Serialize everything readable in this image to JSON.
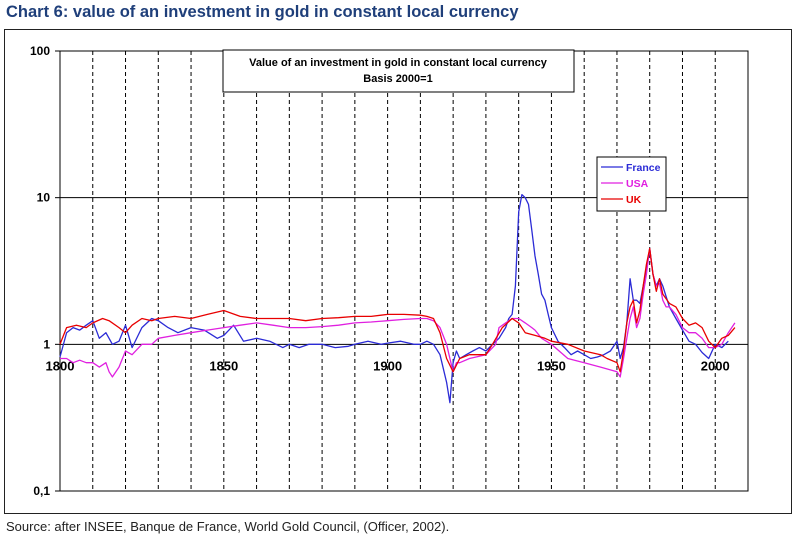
{
  "heading": "Chart 6: value of an investment in gold in constant local currency",
  "source": "Source: after INSEE, Banque de France, World Gold Council, (Officer, 2002).",
  "chart_data": {
    "type": "line",
    "title": "Value of an investment in gold in constant local currency",
    "subtitle": "Basis 2000=1",
    "xlabel": "",
    "ylabel": "",
    "yscale": "log",
    "ylim": [
      0.1,
      100
    ],
    "xlim": [
      1800,
      2010
    ],
    "y_ticks": [
      100,
      10,
      1,
      0.1
    ],
    "y_tick_labels": [
      "100",
      "10",
      "1",
      "0,1"
    ],
    "x_ticks": [
      1800,
      1850,
      1900,
      1950,
      2000
    ],
    "x_tick_labels": [
      "1800",
      "1850",
      "1900",
      "1950",
      "2000"
    ],
    "vertical_gridlines_every_years": 10,
    "legend_position": "right",
    "series": [
      {
        "name": "France",
        "color": "#2b2bd6",
        "x": [
          1800,
          1802,
          1804,
          1806,
          1808,
          1810,
          1812,
          1814,
          1816,
          1818,
          1820,
          1822,
          1825,
          1828,
          1830,
          1833,
          1836,
          1840,
          1844,
          1848,
          1850,
          1853,
          1856,
          1860,
          1864,
          1868,
          1870,
          1873,
          1876,
          1880,
          1884,
          1888,
          1890,
          1894,
          1898,
          1900,
          1904,
          1908,
          1910,
          1912,
          1914,
          1916,
          1918,
          1919,
          1920,
          1921,
          1922,
          1924,
          1926,
          1928,
          1930,
          1932,
          1934,
          1936,
          1937,
          1938,
          1939,
          1940,
          1941,
          1942,
          1943,
          1944,
          1945,
          1946,
          1947,
          1948,
          1949,
          1950,
          1952,
          1954,
          1956,
          1958,
          1960,
          1962,
          1964,
          1966,
          1968,
          1970,
          1971,
          1972,
          1973,
          1974,
          1975,
          1976,
          1977,
          1978,
          1979,
          1980,
          1981,
          1982,
          1983,
          1984,
          1986,
          1988,
          1990,
          1992,
          1994,
          1996,
          1998,
          2000,
          2002,
          2004
        ],
        "values": [
          0.82,
          1.2,
          1.3,
          1.25,
          1.35,
          1.45,
          1.1,
          1.2,
          1.0,
          1.05,
          1.35,
          0.95,
          1.3,
          1.5,
          1.45,
          1.3,
          1.2,
          1.3,
          1.25,
          1.1,
          1.15,
          1.35,
          1.05,
          1.1,
          1.05,
          0.95,
          1.0,
          0.95,
          1.0,
          1.0,
          0.95,
          0.97,
          1.0,
          1.05,
          1.0,
          1.02,
          1.05,
          1.0,
          1.0,
          1.05,
          1.0,
          0.85,
          0.55,
          0.4,
          0.75,
          0.9,
          0.8,
          0.85,
          0.9,
          0.95,
          0.9,
          1.0,
          1.1,
          1.3,
          1.5,
          1.6,
          2.5,
          8.0,
          10.5,
          10.0,
          9.0,
          6.0,
          4.0,
          3.0,
          2.2,
          2.0,
          1.6,
          1.3,
          1.05,
          0.95,
          0.85,
          0.9,
          0.85,
          0.8,
          0.82,
          0.85,
          0.9,
          1.05,
          0.8,
          0.95,
          1.4,
          2.8,
          2.0,
          2.0,
          1.9,
          2.5,
          3.2,
          4.5,
          3.0,
          2.5,
          2.8,
          2.5,
          1.8,
          1.5,
          1.25,
          1.05,
          1.0,
          0.88,
          0.8,
          1.0,
          0.95,
          1.05
        ]
      },
      {
        "name": "USA",
        "color": "#e020e0",
        "x": [
          1800,
          1802,
          1804,
          1806,
          1808,
          1810,
          1812,
          1814,
          1815,
          1816,
          1818,
          1820,
          1822,
          1825,
          1828,
          1830,
          1835,
          1840,
          1845,
          1850,
          1855,
          1860,
          1865,
          1870,
          1875,
          1880,
          1885,
          1890,
          1895,
          1900,
          1905,
          1910,
          1912,
          1914,
          1916,
          1918,
          1919,
          1920,
          1921,
          1922,
          1925,
          1930,
          1933,
          1934,
          1936,
          1938,
          1940,
          1942,
          1944,
          1945,
          1947,
          1950,
          1955,
          1960,
          1965,
          1970,
          1971,
          1972,
          1973,
          1974,
          1975,
          1976,
          1977,
          1978,
          1979,
          1980,
          1981,
          1982,
          1983,
          1984,
          1985,
          1986,
          1988,
          1990,
          1992,
          1994,
          1996,
          1998,
          2000,
          2002,
          2004,
          2006
        ],
        "values": [
          0.8,
          0.8,
          0.75,
          0.78,
          0.75,
          0.75,
          0.7,
          0.75,
          0.65,
          0.6,
          0.7,
          0.9,
          0.85,
          1.0,
          1.0,
          1.1,
          1.15,
          1.2,
          1.25,
          1.3,
          1.35,
          1.4,
          1.35,
          1.3,
          1.3,
          1.32,
          1.35,
          1.4,
          1.42,
          1.45,
          1.48,
          1.5,
          1.5,
          1.45,
          1.3,
          1.0,
          0.8,
          0.65,
          0.75,
          0.75,
          0.8,
          0.85,
          1.0,
          1.3,
          1.4,
          1.5,
          1.5,
          1.4,
          1.3,
          1.25,
          1.1,
          1.0,
          0.8,
          0.75,
          0.7,
          0.65,
          0.6,
          0.8,
          1.1,
          1.5,
          1.8,
          1.3,
          1.5,
          2.2,
          3.0,
          4.5,
          3.0,
          2.5,
          2.6,
          2.0,
          1.8,
          1.8,
          1.6,
          1.3,
          1.2,
          1.2,
          1.1,
          0.95,
          0.95,
          1.0,
          1.2,
          1.4
        ]
      },
      {
        "name": "UK",
        "color": "#e80000",
        "x": [
          1800,
          1802,
          1805,
          1808,
          1810,
          1813,
          1815,
          1818,
          1820,
          1822,
          1825,
          1828,
          1830,
          1835,
          1840,
          1845,
          1850,
          1855,
          1860,
          1865,
          1870,
          1875,
          1880,
          1885,
          1890,
          1895,
          1900,
          1905,
          1910,
          1912,
          1914,
          1916,
          1918,
          1920,
          1922,
          1925,
          1930,
          1932,
          1935,
          1938,
          1940,
          1942,
          1945,
          1948,
          1950,
          1955,
          1960,
          1965,
          1967,
          1970,
          1971,
          1972,
          1973,
          1974,
          1975,
          1976,
          1977,
          1978,
          1979,
          1980,
          1981,
          1982,
          1983,
          1984,
          1986,
          1988,
          1990,
          1992,
          1994,
          1996,
          1998,
          2000,
          2002,
          2004,
          2006
        ],
        "values": [
          1.0,
          1.3,
          1.35,
          1.3,
          1.4,
          1.5,
          1.45,
          1.3,
          1.2,
          1.35,
          1.5,
          1.45,
          1.5,
          1.55,
          1.5,
          1.6,
          1.7,
          1.55,
          1.5,
          1.5,
          1.5,
          1.45,
          1.5,
          1.52,
          1.55,
          1.55,
          1.6,
          1.6,
          1.58,
          1.55,
          1.5,
          1.2,
          0.8,
          0.65,
          0.8,
          0.85,
          0.85,
          1.0,
          1.3,
          1.5,
          1.4,
          1.2,
          1.15,
          1.1,
          1.05,
          1.0,
          0.9,
          0.85,
          0.8,
          0.75,
          0.65,
          0.9,
          1.4,
          1.8,
          2.0,
          1.4,
          1.7,
          2.5,
          3.5,
          4.5,
          3.0,
          2.3,
          2.8,
          2.2,
          1.9,
          1.8,
          1.5,
          1.35,
          1.4,
          1.3,
          1.05,
          0.95,
          1.1,
          1.15,
          1.3
        ]
      }
    ]
  }
}
